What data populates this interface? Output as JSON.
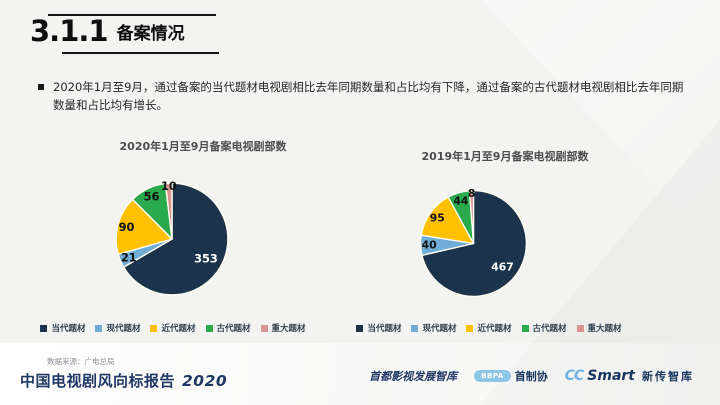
{
  "slide": {
    "section_number": "3.1.1",
    "section_title": "备案情况",
    "bullet_text": "2020年1月至9月，通过备案的当代题材电视剧相比去年同期数量和占比均有下降，通过备案的古代题材电视剧相比去年同期数量和占比均有增长。"
  },
  "colors": {
    "navy": "#1b344b",
    "light_blue": "#6fadd6",
    "yellow": "#ffc000",
    "green": "#2aa94d",
    "salmon": "#d99691",
    "slice_outline": "#fffdf2",
    "footer_navy": "#1f3864",
    "bbpa_blue": "#8ec6e8"
  },
  "chart_data": [
    {
      "type": "pie",
      "title": "2020年1月至9月备案电视剧部数",
      "categories": [
        "当代题材",
        "现代题材",
        "近代题材",
        "古代题材",
        "重大题材"
      ],
      "values": [
        353,
        21,
        90,
        56,
        10
      ],
      "colors": [
        "#1b344b",
        "#6fadd6",
        "#ffc000",
        "#2aa94d",
        "#d99691"
      ],
      "start_angle_deg": 0,
      "direction": "clockwise",
      "legend_position": "bottom"
    },
    {
      "type": "pie",
      "title": "2019年1月至9月备案电视剧部数",
      "categories": [
        "当代题材",
        "现代题材",
        "近代题材",
        "古代题材",
        "重大题材"
      ],
      "values": [
        467,
        40,
        95,
        44,
        8
      ],
      "colors": [
        "#1b344b",
        "#6fadd6",
        "#ffc000",
        "#2aa94d",
        "#d99691"
      ],
      "start_angle_deg": 0,
      "direction": "clockwise",
      "legend_position": "bottom"
    }
  ],
  "footer": {
    "source_label": "数据来源：广电总局",
    "report_title": "中国电视剧风向标报告",
    "report_year": "2020",
    "logos": {
      "logo1_text": "首都影视发展智库",
      "logo2_badge": "BBPA",
      "logo2_text": "首制协",
      "logo3_brand_cc": "CC",
      "logo3_brand_smart": "Smart",
      "logo3_text": "新传智库"
    }
  }
}
